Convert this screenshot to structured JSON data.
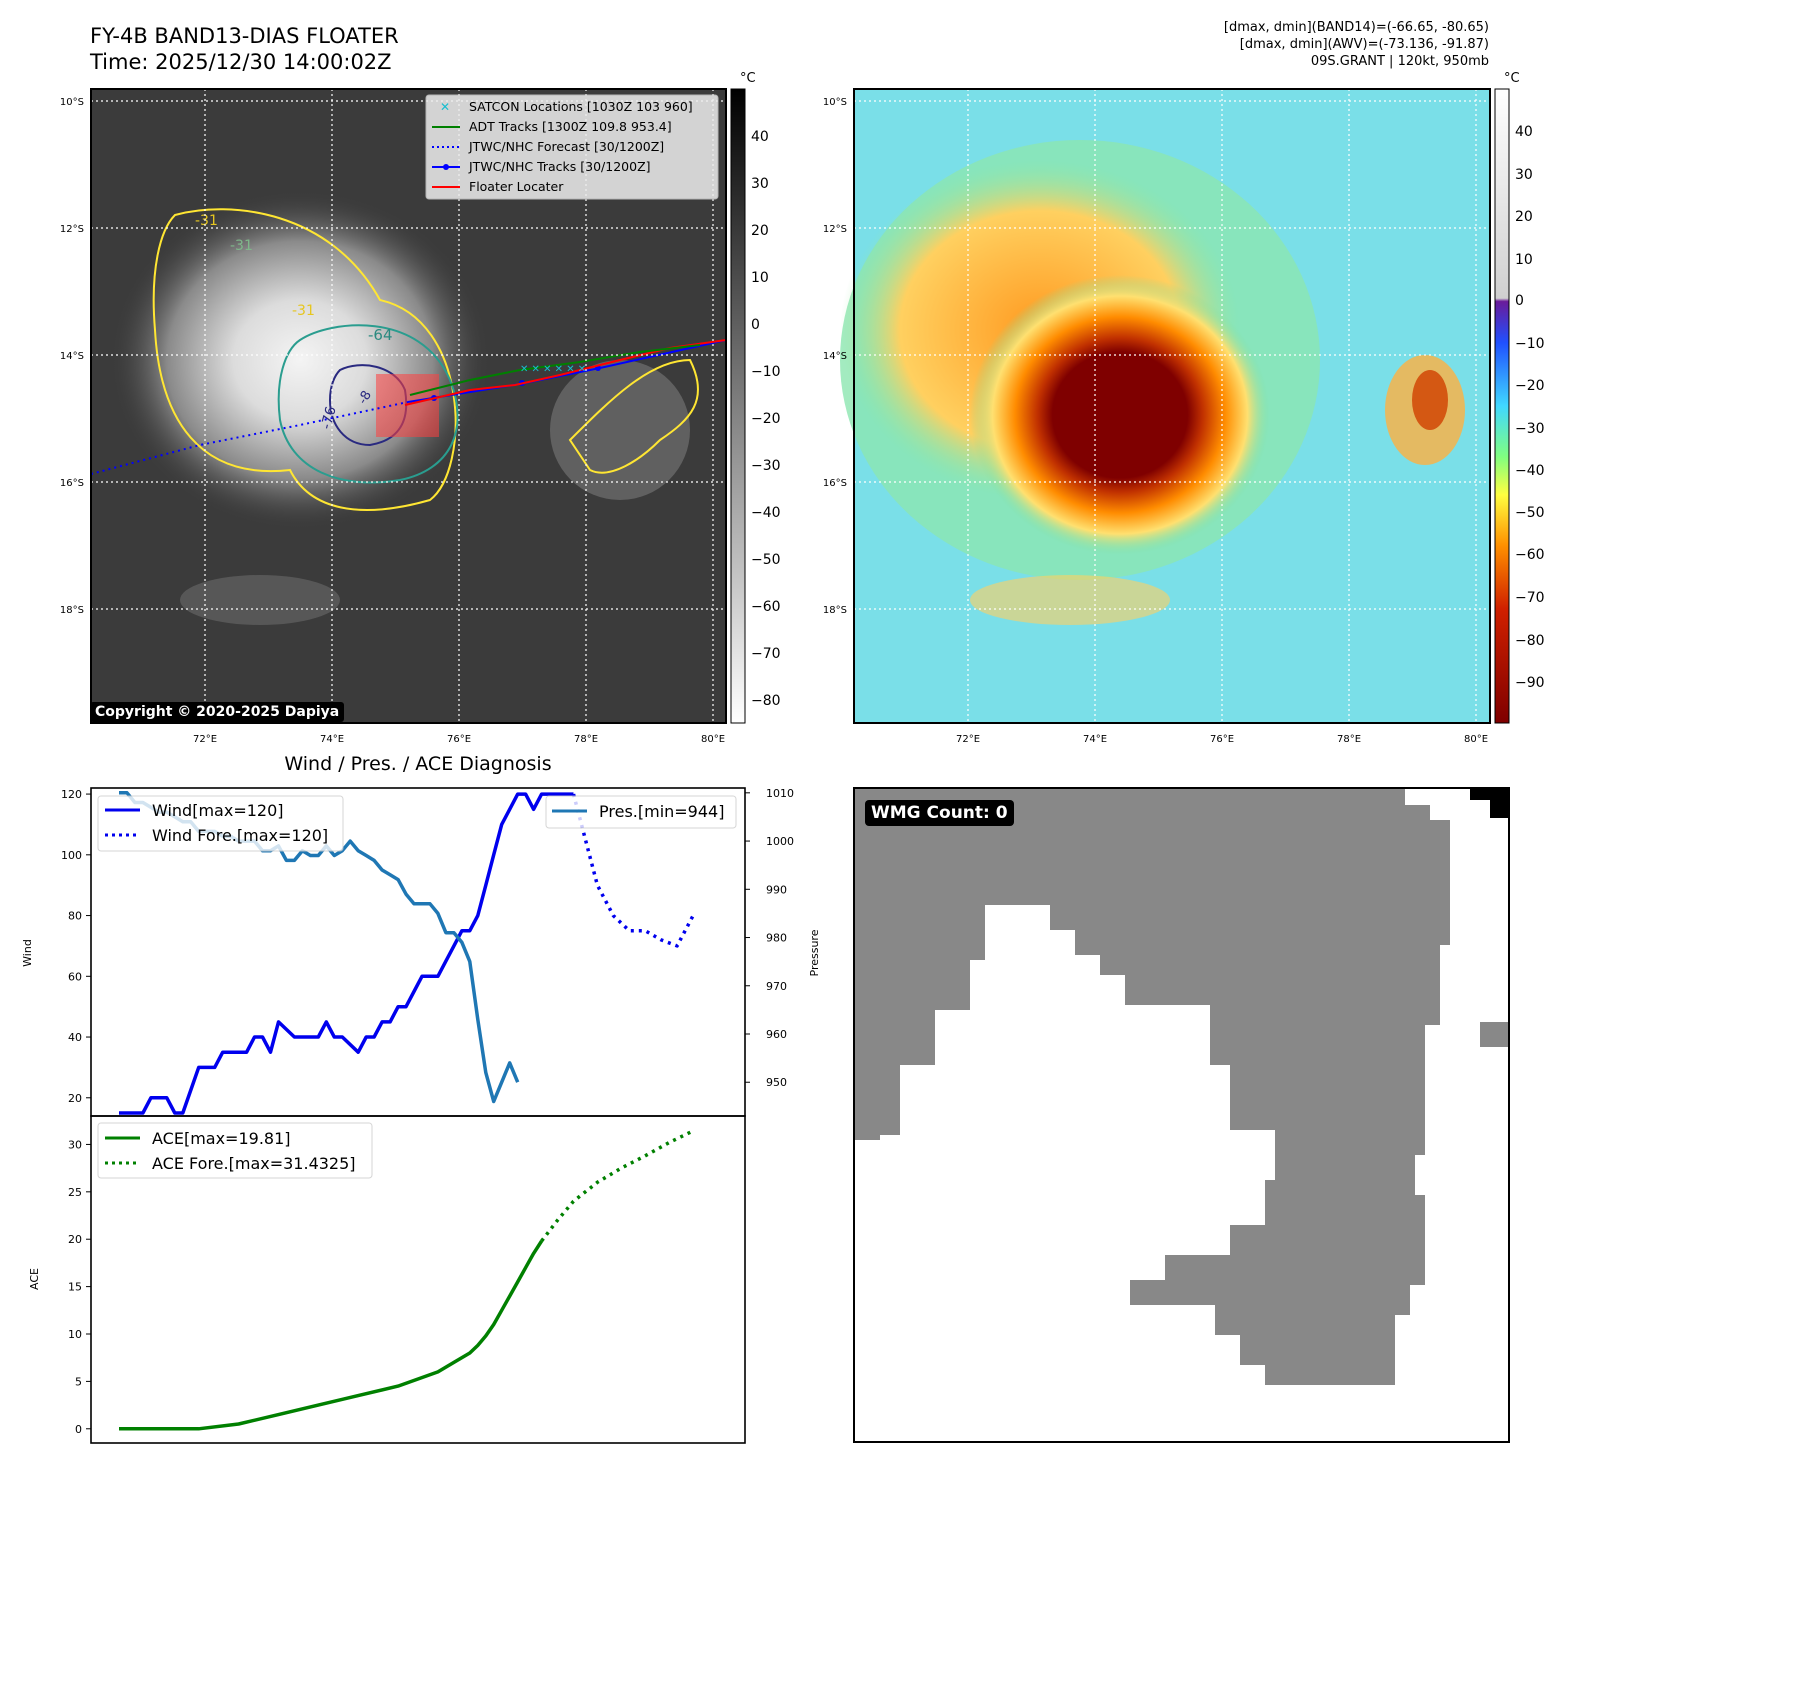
{
  "titles": {
    "main_line1": "FY-4B BAND13-DIAS FLOATER",
    "main_line2": "Time: 2025/12/30 14:00:02Z",
    "right_line1": "[dmax, dmin](BAND14)=(-66.65, -80.65)",
    "right_line2": "[dmax, dmin](AWV)=(-73.136, -91.87)",
    "right_line3": "09S.GRANT | 120kt, 950mb",
    "diag_title": "Wind / Pres. / ACE Diagnosis"
  },
  "map": {
    "lat_labels": [
      "10°S",
      "12°S",
      "14°S",
      "16°S",
      "18°S"
    ],
    "lon_labels": [
      "72°E",
      "74°E",
      "76°E",
      "78°E",
      "80°E"
    ],
    "contour_labels": [
      "-31",
      "-31",
      "-31",
      "-64",
      "-76",
      "-8"
    ],
    "copyright": "Copyright © 2020-2025 Dapiya",
    "legend": [
      {
        "label": "SATCON Locations [1030Z 103 960]",
        "color": "#17becf",
        "style": "x"
      },
      {
        "label": "ADT Tracks [1300Z 109.8 953.4]",
        "color": "#008000",
        "style": "line"
      },
      {
        "label": "JTWC/NHC Forecast [30/1200Z]",
        "color": "#0000ff",
        "style": "dotted"
      },
      {
        "label": "JTWC/NHC Tracks [30/1200Z]",
        "color": "#0000ff",
        "style": "line-dot"
      },
      {
        "label": "Floater Locater",
        "color": "#ff0000",
        "style": "line"
      }
    ],
    "gray_cbar": {
      "unit": "°C",
      "ticks": [
        "40",
        "30",
        "20",
        "10",
        "0",
        "−10",
        "−20",
        "−30",
        "−40",
        "−50",
        "−60",
        "−70",
        "−80"
      ]
    },
    "color_cbar": {
      "unit": "°C",
      "ticks": [
        "40",
        "30",
        "20",
        "10",
        "0",
        "−10",
        "−20",
        "−30",
        "−40",
        "−50",
        "−60",
        "−70",
        "−80",
        "−90"
      ]
    }
  },
  "wmg": {
    "label": "WMG Count: 0"
  },
  "chart_data": [
    {
      "type": "line",
      "title": "Wind / Pres. / ACE Diagnosis",
      "ylabel": "Wind",
      "y2label": "Pressure",
      "ylim": [
        14,
        122
      ],
      "y2lim": [
        943,
        1011
      ],
      "yticks": [
        20,
        40,
        60,
        80,
        100,
        120
      ],
      "y2ticks": [
        950,
        960,
        970,
        980,
        990,
        1000,
        1010
      ],
      "legend_left": [
        "Wind[max=120]",
        "Wind Fore.[max=120]"
      ],
      "legend_right": [
        "Pres.[min=944]"
      ],
      "series": [
        {
          "name": "Wind[max=120]",
          "color": "#0000ee",
          "axis": "left",
          "style": "solid",
          "x": [
            0,
            3,
            4,
            6,
            7,
            8,
            10,
            11,
            12,
            13,
            15,
            16,
            17,
            18,
            19,
            20,
            22,
            23,
            24,
            25,
            26,
            27,
            28,
            30,
            31,
            32,
            33,
            34,
            35,
            36,
            37,
            38,
            39,
            40,
            41,
            42,
            43,
            44,
            45,
            46,
            47,
            48,
            49,
            50,
            51,
            52,
            53,
            54,
            55,
            56,
            57
          ],
          "y": [
            15,
            15,
            20,
            20,
            15,
            15,
            30,
            30,
            30,
            35,
            35,
            35,
            40,
            40,
            35,
            45,
            40,
            40,
            40,
            40,
            45,
            40,
            40,
            35,
            40,
            40,
            45,
            45,
            50,
            50,
            55,
            60,
            60,
            60,
            65,
            70,
            75,
            75,
            80,
            90,
            100,
            110,
            115,
            120,
            120,
            115,
            120,
            120,
            120,
            120,
            120
          ]
        },
        {
          "name": "Wind Fore.[max=120]",
          "color": "#0000ee",
          "axis": "left",
          "style": "dotted",
          "x": [
            57,
            60,
            62,
            64,
            66,
            68,
            70,
            72
          ],
          "y": [
            120,
            90,
            80,
            75,
            75,
            72,
            70,
            80
          ]
        },
        {
          "name": "Pres.[min=944]",
          "color": "#1f77b4",
          "axis": "right",
          "style": "solid",
          "x": [
            0,
            1,
            2,
            3,
            5,
            6,
            7,
            8,
            9,
            10,
            11,
            12,
            13,
            14,
            15,
            16,
            17,
            18,
            19,
            20,
            21,
            22,
            23,
            24,
            25,
            26,
            27,
            28,
            29,
            30,
            31,
            32,
            33,
            34,
            35,
            36,
            37,
            38,
            39,
            40,
            41,
            42,
            43,
            44,
            45,
            46,
            47,
            48,
            49,
            50
          ],
          "y": [
            1010,
            1010,
            1008,
            1008,
            1006,
            1006,
            1005,
            1004,
            1004,
            1002,
            1002,
            1002,
            1001,
            1001,
            1000,
            1000,
            1000,
            998,
            998,
            999,
            996,
            996,
            998,
            997,
            997,
            999,
            997,
            998,
            1000,
            998,
            997,
            996,
            994,
            993,
            992,
            989,
            987,
            987,
            987,
            985,
            981,
            981,
            979,
            975,
            963,
            952,
            946,
            950,
            954,
            950
          ]
        }
      ]
    },
    {
      "type": "line",
      "ylabel": "ACE",
      "ylim": [
        -1.5,
        33
      ],
      "yticks": [
        0,
        5,
        10,
        15,
        20,
        25,
        30
      ],
      "legend": [
        "ACE[max=19.81]",
        "ACE Fore.[max=31.4325]"
      ],
      "series": [
        {
          "name": "ACE[max=19.81]",
          "color": "#008000",
          "style": "solid",
          "x": [
            0,
            5,
            10,
            15,
            20,
            25,
            30,
            35,
            40,
            42,
            44,
            45,
            46,
            47,
            48,
            49,
            50,
            51,
            52,
            53
          ],
          "y": [
            0,
            0,
            0,
            0.5,
            1.5,
            2.5,
            3.5,
            4.5,
            6,
            7,
            8,
            8.8,
            9.8,
            11,
            12.5,
            14,
            15.5,
            17,
            18.5,
            19.81
          ]
        },
        {
          "name": "ACE Fore.[max=31.4325]",
          "color": "#008000",
          "style": "dotted",
          "x": [
            53,
            55,
            57,
            60,
            63,
            66,
            69,
            72
          ],
          "y": [
            19.81,
            22,
            24,
            26,
            27.5,
            28.8,
            30.2,
            31.4325
          ]
        }
      ]
    }
  ]
}
